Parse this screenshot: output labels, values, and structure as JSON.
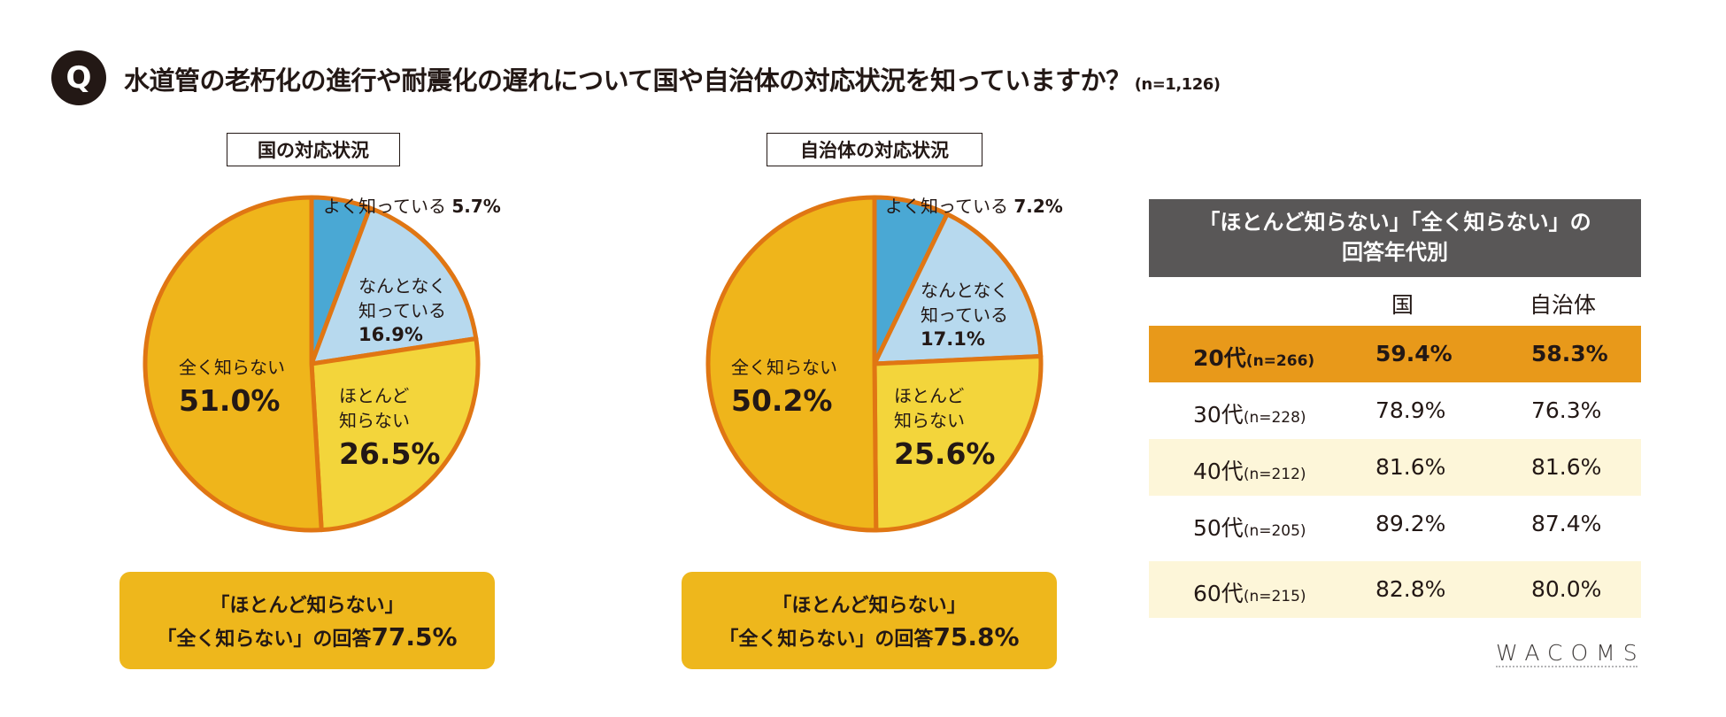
{
  "question": {
    "badge": "Q",
    "text": "水道管の老朽化の進行や耐震化の遅れについて国や自治体の対応状況を知っていますか？",
    "n": "(n=1,126)"
  },
  "colors": {
    "well_known": "#4aa8d4",
    "somewhat": "#b7d9ee",
    "barely": "#f3d53b",
    "not_at_all": "#efb51b",
    "outline": "#e07613",
    "table_header": "#595757",
    "highlight_row": "#e8991a",
    "alt_row": "#fdf6d9"
  },
  "chart_data": [
    {
      "type": "pie",
      "title": "国の対応状況",
      "categories": [
        "よく知っている",
        "なんとなく知っている",
        "ほとんど知らない",
        "全く知らない"
      ],
      "values": [
        5.7,
        16.9,
        26.5,
        51.0
      ],
      "labels": [
        {
          "line1": "よく知っている",
          "pct": "5.7%"
        },
        {
          "line1": "なんとなく",
          "line2": "知っている",
          "pct": "16.9%"
        },
        {
          "line1": "ほとんど",
          "line2": "知らない",
          "pct": "26.5%"
        },
        {
          "line1": "全く知らない",
          "pct": "51.0%"
        }
      ],
      "summary": {
        "line1": "「ほとんど知らない」",
        "line2": "「全く知らない」の回答",
        "pct": "77.5%"
      }
    },
    {
      "type": "pie",
      "title": "自治体の対応状況",
      "categories": [
        "よく知っている",
        "なんとなく知っている",
        "ほとんど知らない",
        "全く知らない"
      ],
      "values": [
        7.2,
        17.1,
        25.6,
        50.2
      ],
      "labels": [
        {
          "line1": "よく知っている",
          "pct": "7.2%"
        },
        {
          "line1": "なんとなく",
          "line2": "知っている",
          "pct": "17.1%"
        },
        {
          "line1": "ほとんど",
          "line2": "知らない",
          "pct": "25.6%"
        },
        {
          "line1": "全く知らない",
          "pct": "50.2%"
        }
      ],
      "summary": {
        "line1": "「ほとんど知らない」",
        "line2": "「全く知らない」の回答",
        "pct": "75.8%"
      }
    },
    {
      "type": "table",
      "title_line1": "「ほとんど知らない」「全く知らない」の",
      "title_line2": "回答年代別",
      "columns": [
        "国",
        "自治体"
      ],
      "rows": [
        {
          "age": "20代",
          "n": "(n=266)",
          "country": "59.4%",
          "local": "58.3%"
        },
        {
          "age": "30代",
          "n": "(n=228)",
          "country": "78.9%",
          "local": "76.3%"
        },
        {
          "age": "40代",
          "n": "(n=212)",
          "country": "81.6%",
          "local": "81.6%"
        },
        {
          "age": "50代",
          "n": "(n=205)",
          "country": "89.2%",
          "local": "87.4%"
        },
        {
          "age": "60代",
          "n": "(n=215)",
          "country": "82.8%",
          "local": "80.0%"
        }
      ]
    }
  ],
  "brand": "WACOMS"
}
